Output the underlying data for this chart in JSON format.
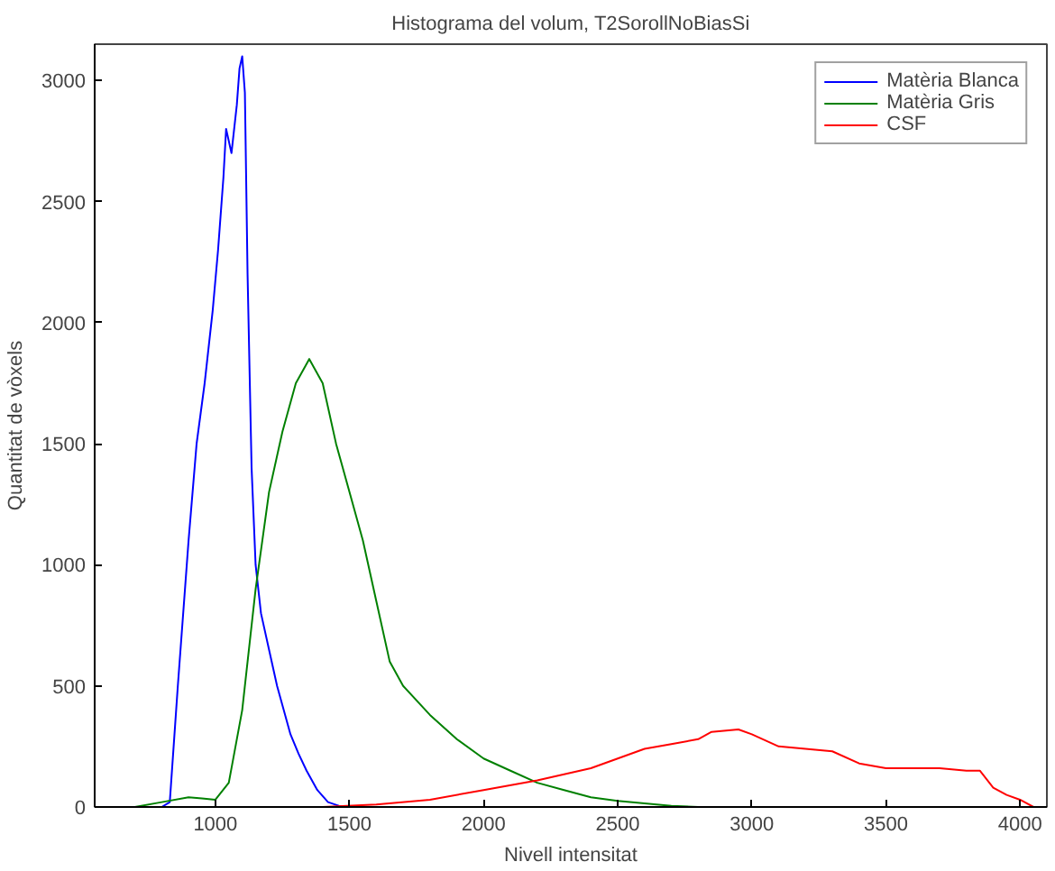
{
  "chart_data": {
    "type": "line",
    "title": "Histograma del volum, T2SorollNoBiasSi",
    "xlabel": "Nivell intensitat",
    "ylabel": "Quantitat de vòxels",
    "xlim": [
      550,
      4100
    ],
    "xticks": [
      1000,
      1500,
      2000,
      2500,
      3000,
      3500,
      4000
    ],
    "ylim": [
      0,
      3150
    ],
    "yticks": [
      0,
      500,
      1000,
      1500,
      2000,
      2500,
      3000
    ],
    "grid": false,
    "legend": "top right",
    "line_style": "solid",
    "marker": "none",
    "series": [
      {
        "name": "Matèria Blanca",
        "color": "#0000ff",
        "x": [
          600,
          800,
          830,
          860,
          900,
          930,
          960,
          990,
          1010,
          1030,
          1040,
          1060,
          1080,
          1090,
          1100,
          1110,
          1120,
          1135,
          1150,
          1170,
          1200,
          1230,
          1260,
          1280,
          1310,
          1340,
          1380,
          1420,
          1460,
          1500
        ],
        "values": [
          0,
          0,
          20,
          500,
          1100,
          1500,
          1750,
          2050,
          2300,
          2600,
          2800,
          2700,
          2900,
          3050,
          3100,
          2950,
          2200,
          1400,
          1000,
          800,
          650,
          500,
          380,
          300,
          220,
          150,
          70,
          20,
          5,
          0
        ]
      },
      {
        "name": "Matèria Gris",
        "color": "#008000",
        "x": [
          700,
          800,
          900,
          950,
          1000,
          1050,
          1100,
          1150,
          1200,
          1250,
          1300,
          1350,
          1400,
          1450,
          1500,
          1550,
          1600,
          1650,
          1700,
          1800,
          1900,
          2000,
          2100,
          2200,
          2300,
          2400,
          2500,
          2600,
          2700,
          2800,
          2900
        ],
        "values": [
          0,
          20,
          40,
          35,
          30,
          100,
          400,
          900,
          1300,
          1550,
          1750,
          1850,
          1750,
          1500,
          1300,
          1100,
          850,
          600,
          500,
          380,
          280,
          200,
          150,
          100,
          70,
          40,
          25,
          15,
          5,
          0,
          0
        ]
      },
      {
        "name": "CSF",
        "color": "#ff0000",
        "x": [
          1300,
          1400,
          1600,
          1800,
          2000,
          2200,
          2400,
          2500,
          2600,
          2700,
          2800,
          2850,
          2950,
          3000,
          3100,
          3200,
          3300,
          3400,
          3500,
          3600,
          3700,
          3800,
          3850,
          3900,
          3950,
          4000,
          4050
        ],
        "values": [
          0,
          0,
          10,
          30,
          70,
          110,
          160,
          200,
          240,
          260,
          280,
          310,
          320,
          300,
          250,
          240,
          230,
          180,
          160,
          160,
          160,
          150,
          150,
          80,
          50,
          30,
          0
        ]
      }
    ]
  }
}
